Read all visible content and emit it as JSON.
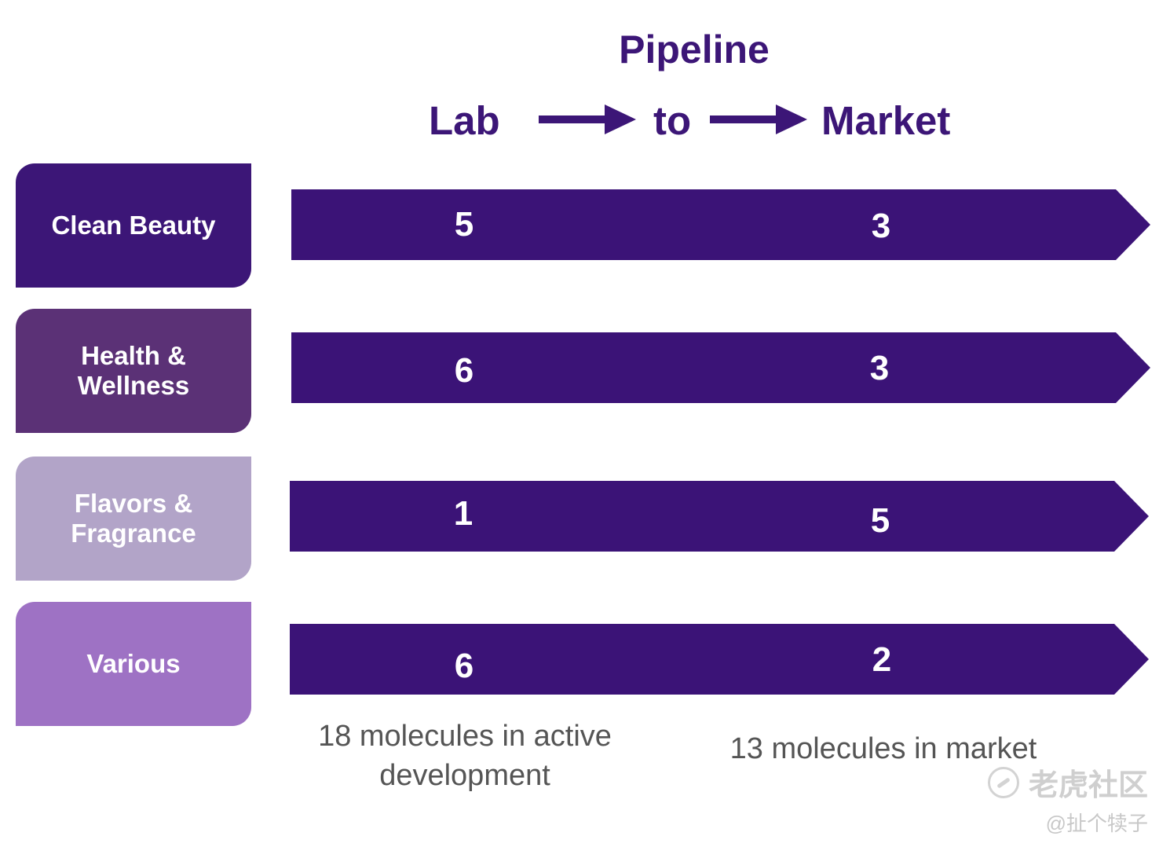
{
  "header": {
    "title": "Pipeline",
    "flow_words": [
      "Lab",
      "to",
      "Market"
    ]
  },
  "colors": {
    "primary": "#3c1677",
    "band": "#3b1377",
    "clean_beauty": "#3c1677",
    "health_wellness": "#5b3176",
    "flavors_fragrance": "#b2a4c8",
    "various": "#9e72c4",
    "footnote": "#555555"
  },
  "rows": [
    {
      "category": "Clean Beauty",
      "lab": "5",
      "market": "3"
    },
    {
      "category": "Health & Wellness",
      "lab": "6",
      "market": "3"
    },
    {
      "category": "Flavors & Fragrance",
      "lab": "1",
      "market": "5"
    },
    {
      "category": "Various",
      "lab": "6",
      "market": "2"
    }
  ],
  "footer": {
    "lab_summary": "18 molecules in active development",
    "market_summary": "13 molecules in market"
  },
  "watermark": {
    "logo_text": "老虎社区",
    "logo_icon": "tiger-community-logo-icon",
    "handle": "@扯个犊子"
  }
}
